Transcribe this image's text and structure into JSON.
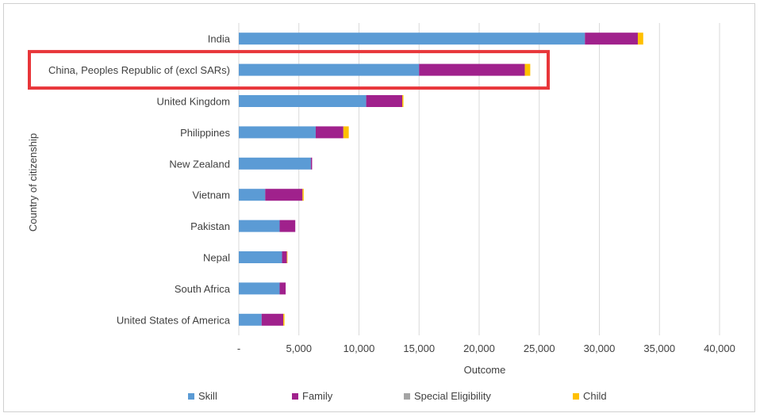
{
  "chart_data": {
    "type": "bar",
    "orientation": "horizontal",
    "stacked": true,
    "categories": [
      "India",
      "China, Peoples Republic of (excl SARs)",
      "United Kingdom",
      "Philippines",
      "New Zealand",
      "Vietnam",
      "Pakistan",
      "Nepal",
      "South Africa",
      "United States of America"
    ],
    "series": [
      {
        "name": "Skill",
        "color": "#5b9bd5",
        "values": [
          28800,
          15000,
          10600,
          6400,
          6000,
          2200,
          3400,
          3600,
          3400,
          1900
        ]
      },
      {
        "name": "Family",
        "color": "#a0218c",
        "values": [
          4400,
          8800,
          3000,
          2300,
          100,
          3100,
          1300,
          400,
          500,
          1800
        ]
      },
      {
        "name": "Special Eligibility",
        "color": "#a5a5a5",
        "values": [
          0,
          0,
          0,
          0,
          0,
          0,
          0,
          0,
          0,
          0
        ]
      },
      {
        "name": "Child",
        "color": "#ffc000",
        "values": [
          450,
          450,
          100,
          450,
          0,
          100,
          0,
          50,
          0,
          100
        ]
      }
    ],
    "xlabel": "Outcome",
    "ylabel": "Country of citizenship",
    "xlim": [
      0,
      40000
    ],
    "xticks": [
      "-",
      "5,000",
      "10,000",
      "15,000",
      "20,000",
      "25,000",
      "30,000",
      "35,000",
      "40,000"
    ],
    "grid": "vertical",
    "legend_position": "bottom",
    "highlight": {
      "category": "China, Peoples Republic of (excl SARs)",
      "color": "#e8363a"
    }
  }
}
